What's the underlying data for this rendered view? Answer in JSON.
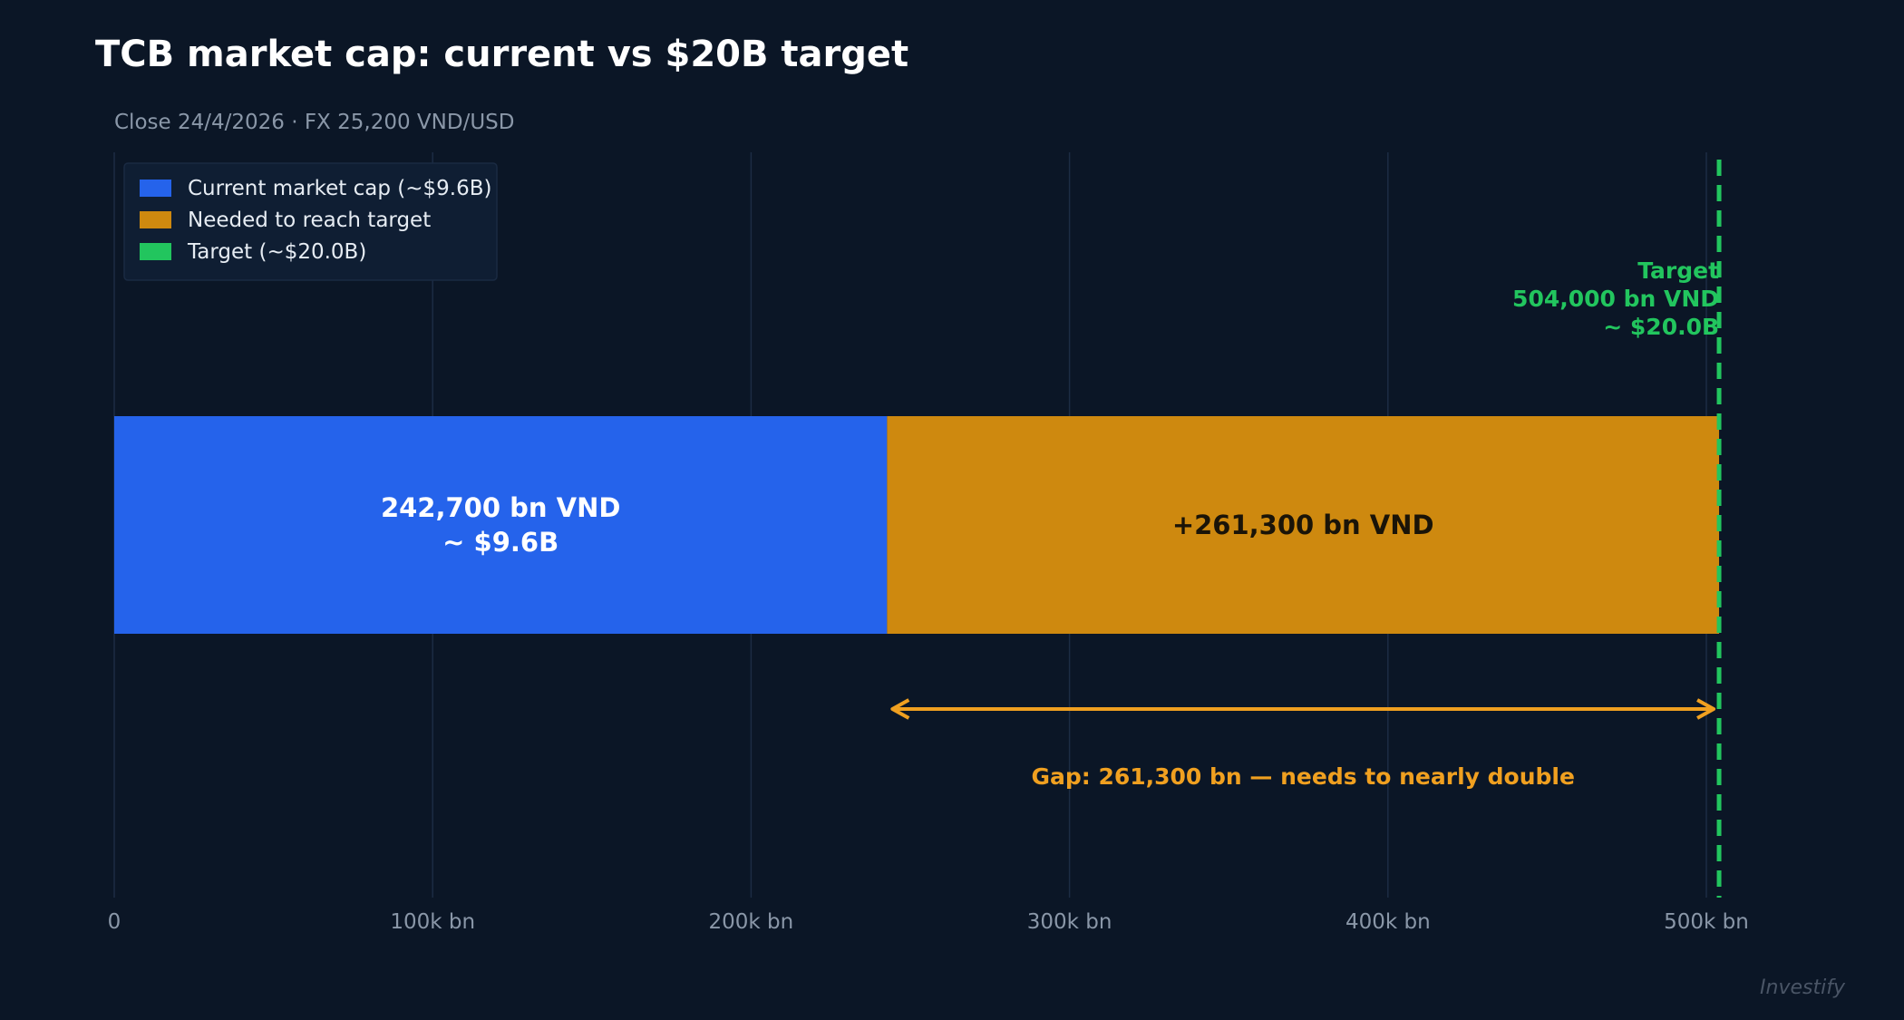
{
  "chart_data": {
    "type": "bar",
    "orientation": "horizontal",
    "stacked": true,
    "title": "TCB market cap: current vs $20B target",
    "subtitle": "Close 24/4/2026 · FX 25,200 VND/USD",
    "unit": "bn VND",
    "xlim": [
      0,
      540000
    ],
    "grid": true,
    "legend_position": "top-left",
    "x_ticks": [
      {
        "value": 0,
        "label": "0"
      },
      {
        "value": 100000,
        "label": "100k bn"
      },
      {
        "value": 200000,
        "label": "200k bn"
      },
      {
        "value": 300000,
        "label": "300k bn"
      },
      {
        "value": 400000,
        "label": "400k bn"
      },
      {
        "value": 500000,
        "label": "500k bn"
      }
    ],
    "series": [
      {
        "name": "Current market cap  (~$9.6B)",
        "value": 242700,
        "label_lines": [
          "242,700 bn VND",
          "~ $9.6B"
        ],
        "color": "#2563eb",
        "label_color": "#ffffff"
      },
      {
        "name": "Needed to reach target",
        "value": 261300,
        "label_lines": [
          "+261,300 bn VND"
        ],
        "color": "#ce890f",
        "label_color": "#1a1408"
      }
    ],
    "target": {
      "name": "Target  (~$20.0B)",
      "value": 504000,
      "label_lines": [
        "Target",
        "504,000 bn VND",
        "~ $20.0B"
      ],
      "color": "#22c55e"
    },
    "gap_annotation": {
      "from": 242700,
      "to": 504000,
      "text": "Gap: 261,300 bn — needs to nearly double",
      "color": "#f0a020"
    },
    "watermark": "Investify"
  },
  "colors": {
    "background": "#0b1626",
    "grid": "#1c2c44",
    "title": "#ffffff",
    "subtitle": "#8a97a8",
    "tick": "#8a97a8",
    "legend_bg": "#0f1e33",
    "legend_text": "#e6ecf3",
    "watermark": "#4a5566"
  }
}
